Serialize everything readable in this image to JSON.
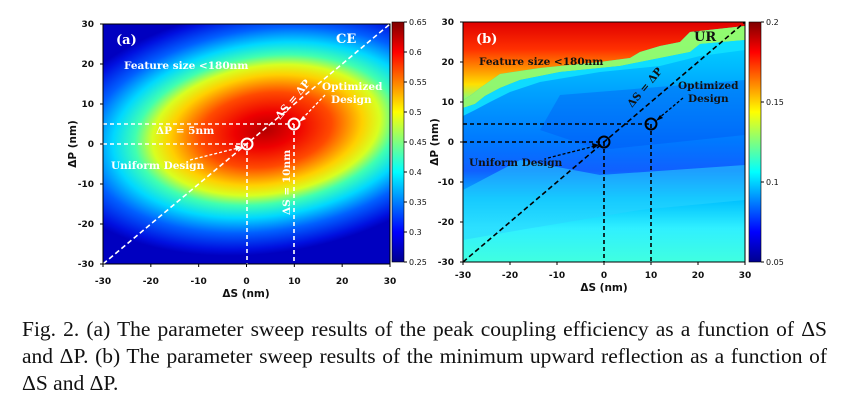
{
  "caption": "Fig. 2.   (a) The parameter sweep results of the peak coupling efficiency as a function of ΔS and ΔP. (b) The parameter sweep results of the minimum upward reflection as a function of ΔS and ΔP.",
  "chart_data": [
    {
      "type": "heatmap",
      "panel": "(a)",
      "metric": "CE",
      "xlabel": "ΔS (nm)",
      "ylabel": "ΔP (nm)",
      "xlim": [
        -30,
        30
      ],
      "ylim": [
        -30,
        30
      ],
      "xticks": [
        -30,
        -20,
        -10,
        0,
        10,
        20,
        30
      ],
      "yticks": [
        30,
        20,
        10,
        0,
        -10,
        -20,
        -30
      ],
      "colorbar": {
        "min": 0.25,
        "max": 0.65,
        "ticks": [
          0.65,
          0.6,
          0.55,
          0.5,
          0.45,
          0.4,
          0.35,
          0.3,
          0.25
        ],
        "colormap": "jet"
      },
      "points": {
        "uniform_design": [
          0,
          0
        ],
        "optimized_design": [
          10,
          5
        ]
      },
      "annotations": [
        "Feature size <180nm",
        "ΔP = 5nm",
        "ΔS = 10nm",
        "ΔS = ΔP",
        "Optimized",
        "Design",
        "Uniform Design"
      ]
    },
    {
      "type": "heatmap",
      "panel": "(b)",
      "metric": "UR",
      "xlabel": "ΔS (nm)",
      "ylabel": "ΔP (nm)",
      "xlim": [
        -30,
        30
      ],
      "ylim": [
        -30,
        30
      ],
      "xticks": [
        -30,
        -20,
        -10,
        0,
        10,
        20,
        30
      ],
      "yticks": [
        30,
        20,
        10,
        0,
        -10,
        -20,
        -30
      ],
      "colorbar": {
        "min": 0.05,
        "max": 0.2,
        "ticks": [
          0.2,
          0.15,
          0.1,
          0.05
        ],
        "colormap": "jet"
      },
      "points": {
        "uniform_design": [
          0,
          0
        ],
        "optimized_design": [
          10,
          5
        ]
      },
      "annotations": [
        "Feature size <180nm",
        "ΔS = ΔP",
        "Optimized",
        "Design",
        "Uniform Design"
      ]
    }
  ]
}
